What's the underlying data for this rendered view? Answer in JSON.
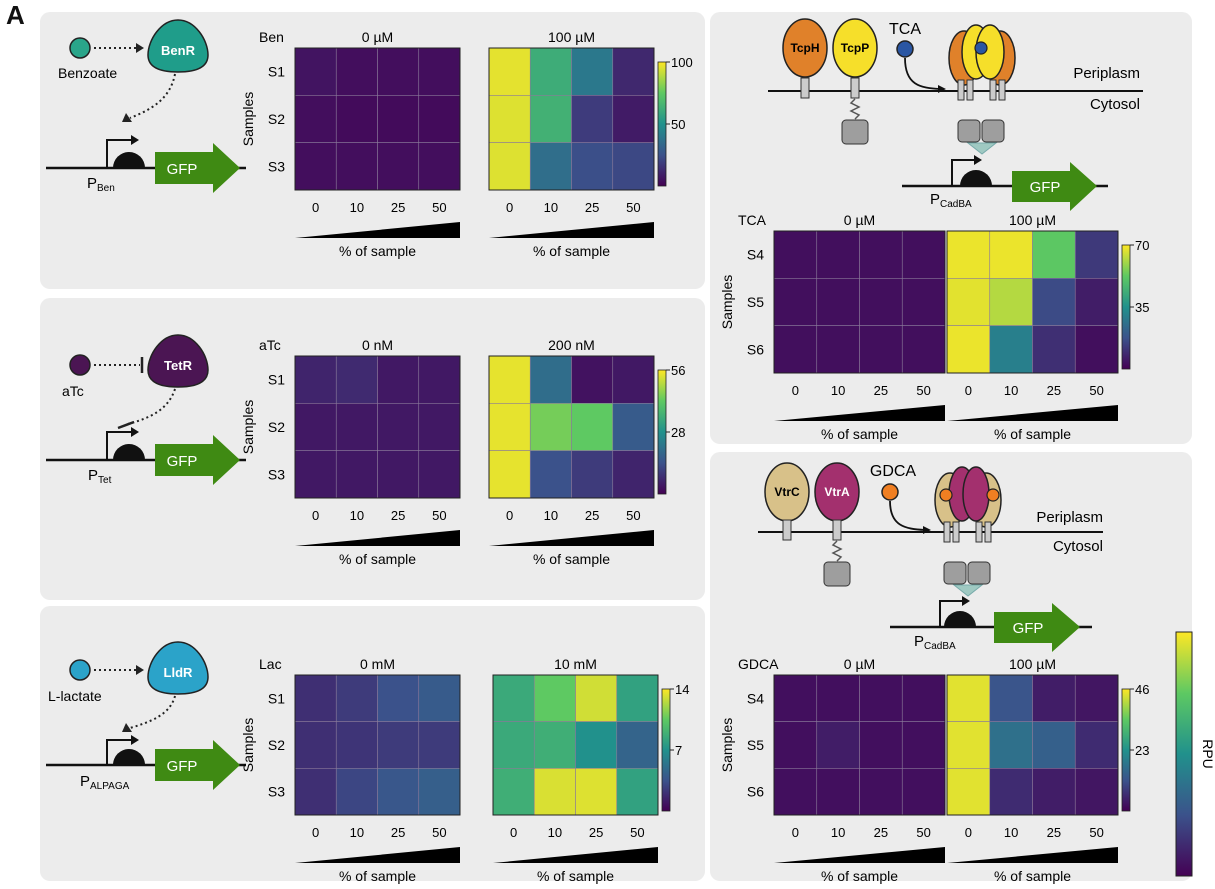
{
  "figure": {
    "panel_label": "A",
    "colorbar_title": "RPU",
    "sample_axis_label": "Samples",
    "x_axis_label": "% of sample"
  },
  "circuits": {
    "ben": {
      "inducer": "Benzoate",
      "regulator": "BenR",
      "promoter": "P",
      "promoter_sub": "Ben",
      "reporter": "GFP",
      "inducer_color": "#2aa58a",
      "regulator_color": "#1f9d8a"
    },
    "tet": {
      "inducer": "aTc",
      "regulator": "TetR",
      "promoter": "P",
      "promoter_sub": "Tet",
      "reporter": "GFP",
      "inducer_color": "#4b1553",
      "regulator_color": "#4b1553"
    },
    "lac": {
      "inducer": "L-lactate",
      "regulator": "LldR",
      "promoter": "P",
      "promoter_sub": "ALPAGA",
      "reporter": "GFP",
      "inducer_color": "#2ba3c9",
      "regulator_color": "#2ba3c9"
    },
    "tca": {
      "ligand": "TCA",
      "receptor1": "TcpH",
      "receptor2": "TcpP",
      "periplasm": "Periplasm",
      "cytosol": "Cytosol",
      "promoter": "P",
      "promoter_sub": "CadBA",
      "reporter": "GFP",
      "receptor1_color": "#e0812a",
      "receptor2_color": "#f6df2a",
      "ligand_color": "#2a56a3"
    },
    "gdca": {
      "ligand": "GDCA",
      "receptor1": "VtrC",
      "receptor2": "VtrA",
      "periplasm": "Periplasm",
      "cytosol": "Cytosol",
      "promoter": "P",
      "promoter_sub": "CadBA",
      "reporter": "GFP",
      "receptor1_color": "#d8c189",
      "receptor2_color": "#a3306e",
      "ligand_color": "#f07f22"
    }
  },
  "chart_data": [
    {
      "type": "heatmap",
      "id": "ben",
      "inducer": "Ben",
      "conditions": [
        "0 µM",
        "100 µM"
      ],
      "rows": [
        "S1",
        "S2",
        "S3"
      ],
      "columns": [
        "0",
        "10",
        "25",
        "50"
      ],
      "xlabel": "% of sample",
      "ylabel": "Samples",
      "colorbar": {
        "min": 0,
        "max": 100,
        "ticks": [
          50,
          100
        ]
      },
      "values": [
        [
          [
            6,
            4,
            4,
            4
          ],
          [
            4,
            3,
            3,
            3
          ],
          [
            4,
            4,
            4,
            4
          ]
        ],
        [
          [
            96,
            62,
            40,
            12
          ],
          [
            95,
            64,
            18,
            8
          ],
          [
            95,
            36,
            24,
            22
          ]
        ]
      ]
    },
    {
      "type": "heatmap",
      "id": "tet",
      "inducer": "aTc",
      "conditions": [
        "0 nM",
        "200 nM"
      ],
      "rows": [
        "S1",
        "S2",
        "S3"
      ],
      "columns": [
        "0",
        "10",
        "25",
        "50"
      ],
      "xlabel": "% of sample",
      "ylabel": "Samples",
      "colorbar": {
        "min": 0,
        "max": 56,
        "ticks": [
          28,
          56
        ]
      },
      "values": [
        [
          [
            6,
            7,
            4,
            4
          ],
          [
            4,
            4,
            4,
            4
          ],
          [
            4,
            4,
            4,
            4
          ]
        ],
        [
          [
            54,
            20,
            3,
            4
          ],
          [
            54,
            44,
            42,
            16
          ],
          [
            54,
            14,
            10,
            6
          ]
        ]
      ]
    },
    {
      "type": "heatmap",
      "id": "lac",
      "inducer": "Lac",
      "conditions": [
        "0 mM",
        "10 mM"
      ],
      "rows": [
        "S1",
        "S2",
        "S3"
      ],
      "columns": [
        "0",
        "10",
        "25",
        "50"
      ],
      "xlabel": "% of sample",
      "ylabel": "Samples",
      "colorbar": {
        "min": 0,
        "max": 14,
        "ticks": [
          7,
          14
        ]
      },
      "values": [
        [
          [
            2.0,
            2.5,
            3.5,
            4.0
          ],
          [
            2.0,
            2.2,
            2.5,
            2.5
          ],
          [
            2.0,
            3.0,
            3.8,
            4.2
          ]
        ],
        [
          [
            8.5,
            10.5,
            13.0,
            8.0
          ],
          [
            8.5,
            8.8,
            7.0,
            4.5
          ],
          [
            8.8,
            13.2,
            13.3,
            8.0
          ]
        ]
      ]
    },
    {
      "type": "heatmap",
      "id": "tca",
      "inducer": "TCA",
      "conditions": [
        "0 µM",
        "100 µM"
      ],
      "rows": [
        "S4",
        "S5",
        "S6"
      ],
      "columns": [
        "0",
        "10",
        "25",
        "50"
      ],
      "xlabel": "% of sample",
      "ylabel": "Samples",
      "colorbar": {
        "min": 0,
        "max": 70,
        "ticks": [
          35,
          70
        ]
      },
      "values": [
        [
          [
            3,
            3,
            3,
            3
          ],
          [
            3,
            3,
            3,
            3
          ],
          [
            3,
            3,
            3,
            3
          ]
        ],
        [
          [
            68,
            68,
            52,
            12
          ],
          [
            67,
            62,
            16,
            6
          ],
          [
            68,
            30,
            10,
            3
          ]
        ]
      ]
    },
    {
      "type": "heatmap",
      "id": "gdca",
      "inducer": "GDCA",
      "conditions": [
        "0 µM",
        "100 µM"
      ],
      "rows": [
        "S4",
        "S5",
        "S6"
      ],
      "columns": [
        "0",
        "10",
        "25",
        "50"
      ],
      "xlabel": "% of sample",
      "ylabel": "Samples",
      "colorbar": {
        "min": 0,
        "max": 46,
        "ticks": [
          23,
          46
        ]
      },
      "values": [
        [
          [
            2,
            2,
            2,
            2
          ],
          [
            2,
            4,
            2,
            2
          ],
          [
            2,
            2,
            2,
            2
          ]
        ],
        [
          [
            44,
            12,
            4,
            3
          ],
          [
            44,
            17,
            14,
            6
          ],
          [
            44,
            6,
            4,
            3
          ]
        ]
      ]
    }
  ]
}
